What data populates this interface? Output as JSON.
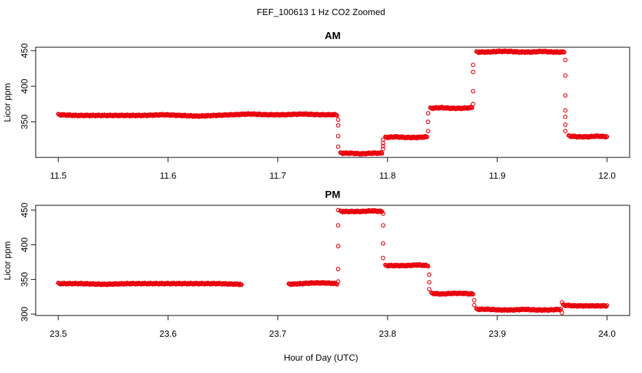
{
  "title": "FEF_100613  1 Hz CO2 Zoomed",
  "xlabel": "Hour of Day (UTC)",
  "colors": {
    "points": "#e8000b",
    "axes": "#000000",
    "background": "#ffffff"
  },
  "chart_data": [
    {
      "type": "scatter",
      "title": "AM",
      "xlabel": "",
      "ylabel": "Licor ppm",
      "xlim": [
        11.5,
        12.0
      ],
      "ylim": [
        300,
        455
      ],
      "grid": false,
      "x_ticks": [
        11.5,
        11.6,
        11.7,
        11.8,
        11.9,
        12.0
      ],
      "x_tick_labels": [
        "11.5",
        "11.6",
        "11.7",
        "11.8",
        "11.9",
        "12.0"
      ],
      "y_ticks": [
        350,
        400,
        450
      ],
      "y_tick_labels": [
        "350",
        "400",
        "450"
      ],
      "segments": [
        {
          "x_start": 11.5,
          "x_end": 11.754,
          "values": [
            360,
            359,
            359,
            359,
            359,
            359,
            360,
            359,
            358,
            359,
            360,
            361,
            360,
            360,
            361,
            360,
            360
          ]
        },
        {
          "x_start": 11.757,
          "x_end": 11.795,
          "values": [
            306,
            306,
            305,
            306,
            306
          ]
        },
        {
          "x_start": 11.798,
          "x_end": 11.836,
          "values": [
            328,
            329,
            328,
            328,
            329
          ]
        },
        {
          "x_start": 11.839,
          "x_end": 11.877,
          "values": [
            369,
            370,
            369,
            369,
            370
          ]
        },
        {
          "x_start": 11.881,
          "x_end": 11.961,
          "values": [
            448,
            448,
            449,
            449,
            448,
            448,
            449,
            448,
            448
          ]
        },
        {
          "x_start": 11.965,
          "x_end": 12.0,
          "values": [
            330,
            329,
            329,
            330,
            329
          ]
        }
      ],
      "transitions": [
        {
          "x": 11.755,
          "values": [
            353,
            345,
            330,
            315
          ]
        },
        {
          "x": 11.796,
          "values": [
            312,
            316,
            320,
            325
          ]
        },
        {
          "x": 11.837,
          "values": [
            337,
            350,
            362
          ]
        },
        {
          "x": 11.878,
          "values": [
            375,
            393,
            420,
            430
          ]
        },
        {
          "x": 11.962,
          "values": [
            437,
            415,
            387,
            366,
            357,
            346,
            337
          ]
        }
      ]
    },
    {
      "type": "scatter",
      "title": "PM",
      "xlabel": "",
      "ylabel": "Licor ppm",
      "xlim": [
        23.5,
        24.0
      ],
      "ylim": [
        298,
        455
      ],
      "grid": false,
      "x_ticks": [
        23.5,
        23.6,
        23.7,
        23.8,
        23.9,
        24.0
      ],
      "x_tick_labels": [
        "23.5",
        "23.6",
        "23.7",
        "23.8",
        "23.9",
        "24.0"
      ],
      "y_ticks": [
        300,
        350,
        400,
        450
      ],
      "y_tick_labels": [
        "300",
        "350",
        "400",
        "450"
      ],
      "segments": [
        {
          "x_start": 23.5,
          "x_end": 23.667,
          "values": [
            344,
            344,
            343,
            344,
            344,
            344,
            344,
            344,
            343
          ]
        },
        {
          "x_start": 23.71,
          "x_end": 23.754,
          "values": [
            343,
            344,
            345,
            345,
            344
          ]
        },
        {
          "x_start": 23.757,
          "x_end": 23.795,
          "values": [
            448,
            448,
            448,
            449,
            448
          ]
        },
        {
          "x_start": 23.798,
          "x_end": 23.837,
          "values": [
            370,
            370,
            370,
            371,
            370
          ]
        },
        {
          "x_start": 23.84,
          "x_end": 23.878,
          "values": [
            330,
            329,
            330,
            330,
            329
          ]
        },
        {
          "x_start": 23.881,
          "x_end": 23.958,
          "values": [
            307,
            307,
            306,
            306,
            307,
            306,
            306,
            307
          ]
        },
        {
          "x_start": 23.96,
          "x_end": 24.0,
          "values": [
            313,
            312,
            312,
            312,
            312
          ]
        }
      ],
      "transitions": [
        {
          "x": 23.755,
          "values": [
            347,
            365,
            398,
            428,
            450
          ]
        },
        {
          "x": 23.796,
          "values": [
            445,
            428,
            402,
            381
          ]
        },
        {
          "x": 23.838,
          "values": [
            357,
            346,
            336
          ]
        },
        {
          "x": 23.879,
          "values": [
            320,
            313
          ]
        },
        {
          "x": 23.959,
          "values": [
            302,
            317
          ]
        }
      ]
    }
  ]
}
